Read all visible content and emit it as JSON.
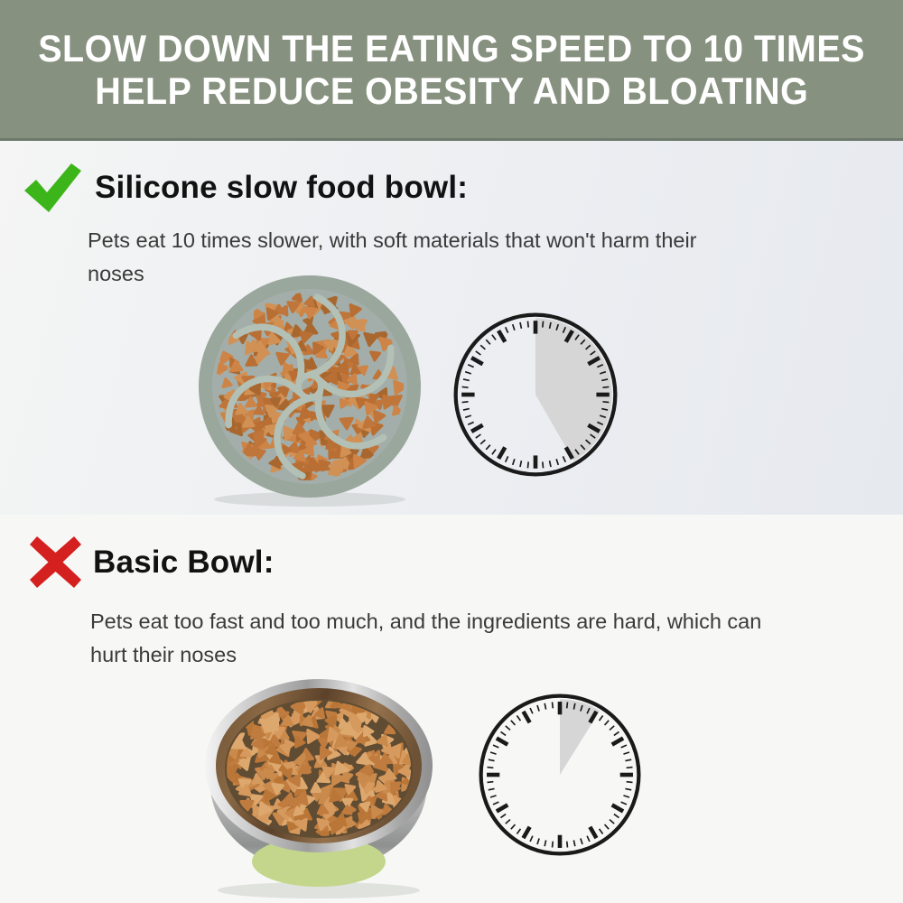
{
  "banner": {
    "line1": "SLOW DOWN THE EATING SPEED TO 10 TIMES",
    "line2": "HELP REDUCE OBESITY AND BLOATING"
  },
  "sections": {
    "slow": {
      "icon": "check-icon",
      "title": "Silicone slow food bowl:",
      "description_line1": "Pets eat 10 times slower, with soft materials that won't harm their",
      "description_line2": "noses",
      "clock": {
        "shaded_start_deg": 0,
        "shaded_end_deg": 150
      }
    },
    "basic": {
      "icon": "cross-icon",
      "title": "Basic Bowl:",
      "description_line1": "Pets eat too fast and too much, and the ingredients are hard, which can",
      "description_line2": "hurt their noses",
      "clock": {
        "shaded_start_deg": 0,
        "shaded_end_deg": 32
      }
    }
  },
  "colors": {
    "banner_bg": "#87917f",
    "banner_text": "#ffffff",
    "check_green": "#3cb51a",
    "cross_red": "#d4201f",
    "heading_text": "#121212",
    "body_text": "#3a3a3a",
    "clock_line": "#1a1a1a",
    "clock_sector": "#d5d6d5",
    "slow_bowl_rim": "#9aa79c",
    "slow_bowl_floor": "#a3aeaa",
    "slow_bowl_ridge": "#b2c0b6",
    "basic_bowl_interior": "#5f4c33",
    "basic_bowl_green_base": "#c3d68c",
    "kibble_slow": [
      "#c0763a",
      "#b96f33",
      "#cd8446",
      "#d19054",
      "#a8672e"
    ],
    "kibble_basic": [
      "#ca8a4c",
      "#c07c3e",
      "#d69a5e",
      "#b97636",
      "#dda86e"
    ]
  }
}
